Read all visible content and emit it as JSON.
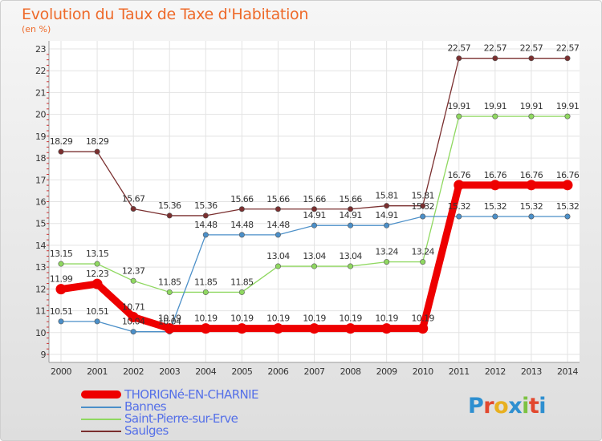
{
  "page": {
    "title": "Evolution du Taux de Taxe d'Habitation",
    "subtitle": "(en %)"
  },
  "logo": {
    "letters": [
      "P",
      "r",
      "o",
      "x",
      "i",
      "t",
      "i"
    ],
    "colors": [
      "#2e8fd0",
      "#e2482e",
      "#e8b020",
      "#2e8fd0",
      "#7cc242",
      "#e2482e",
      "#2e8fd0"
    ]
  },
  "chart_data": {
    "type": "line",
    "title": "Evolution du Taux de Taxe d'Habitation",
    "ylabel": "(en %)",
    "xlabel": "",
    "ylim": [
      9,
      23
    ],
    "yticks": [
      9,
      10,
      11,
      12,
      13,
      14,
      15,
      16,
      17,
      18,
      19,
      20,
      21,
      22,
      23
    ],
    "grid": true,
    "legend_position": "bottom-left",
    "x": [
      "2000",
      "2001",
      "2002",
      "2003",
      "2004",
      "2005",
      "2006",
      "2007",
      "2008",
      "2009",
      "2010",
      "2011",
      "2012",
      "2013",
      "2014"
    ],
    "series": [
      {
        "name": "THORIGNé-EN-CHARNIE",
        "color": "#ee0000",
        "values": [
          11.99,
          12.23,
          10.71,
          10.19,
          10.19,
          10.19,
          10.19,
          10.19,
          10.19,
          10.19,
          10.19,
          16.76,
          16.76,
          16.76,
          16.76
        ],
        "labels": [
          "11.99",
          "12.23",
          "10.71",
          "10.19",
          "10.19",
          "10.19",
          "10.19",
          "10.19",
          "10.19",
          "10.19",
          "10.19",
          "16.76",
          "16.76",
          "16.76",
          "16.76"
        ]
      },
      {
        "name": "Bannes",
        "color": "#4b8fc8",
        "values": [
          10.51,
          10.51,
          10.04,
          10.04,
          14.48,
          14.48,
          14.48,
          14.91,
          14.91,
          14.91,
          15.32,
          15.32,
          15.32,
          15.32,
          15.32
        ],
        "labels": [
          "10.51",
          "10.51",
          "10.04",
          "10.04",
          "14.48",
          "14.48",
          "14.48",
          "14.91",
          "14.91",
          "14.91",
          "15.32",
          "15.32",
          "15.32",
          "15.32",
          "15.32"
        ]
      },
      {
        "name": "Saint-Pierre-sur-Erve",
        "color": "#8fd860",
        "values": [
          13.15,
          13.15,
          12.37,
          11.85,
          11.85,
          11.85,
          13.04,
          13.04,
          13.04,
          13.24,
          13.24,
          19.91,
          19.91,
          19.91,
          19.91
        ],
        "labels": [
          "13.15",
          "13.15",
          "12.37",
          "11.85",
          "11.85",
          "11.85",
          "13.04",
          "13.04",
          "13.04",
          "13.24",
          "13.24",
          "19.91",
          "19.91",
          "19.91",
          "19.91"
        ]
      },
      {
        "name": "Saulges",
        "color": "#7a2f2f",
        "values": [
          18.29,
          18.29,
          15.67,
          15.36,
          15.36,
          15.66,
          15.66,
          15.66,
          15.66,
          15.81,
          15.81,
          22.57,
          22.57,
          22.57,
          22.57
        ],
        "labels": [
          "18.29",
          "18.29",
          "15.67",
          "15.36",
          "15.36",
          "15.66",
          "15.66",
          "15.66",
          "15.66",
          "15.81",
          "15.81",
          "22.57",
          "22.57",
          "22.57",
          "22.57"
        ]
      }
    ]
  }
}
